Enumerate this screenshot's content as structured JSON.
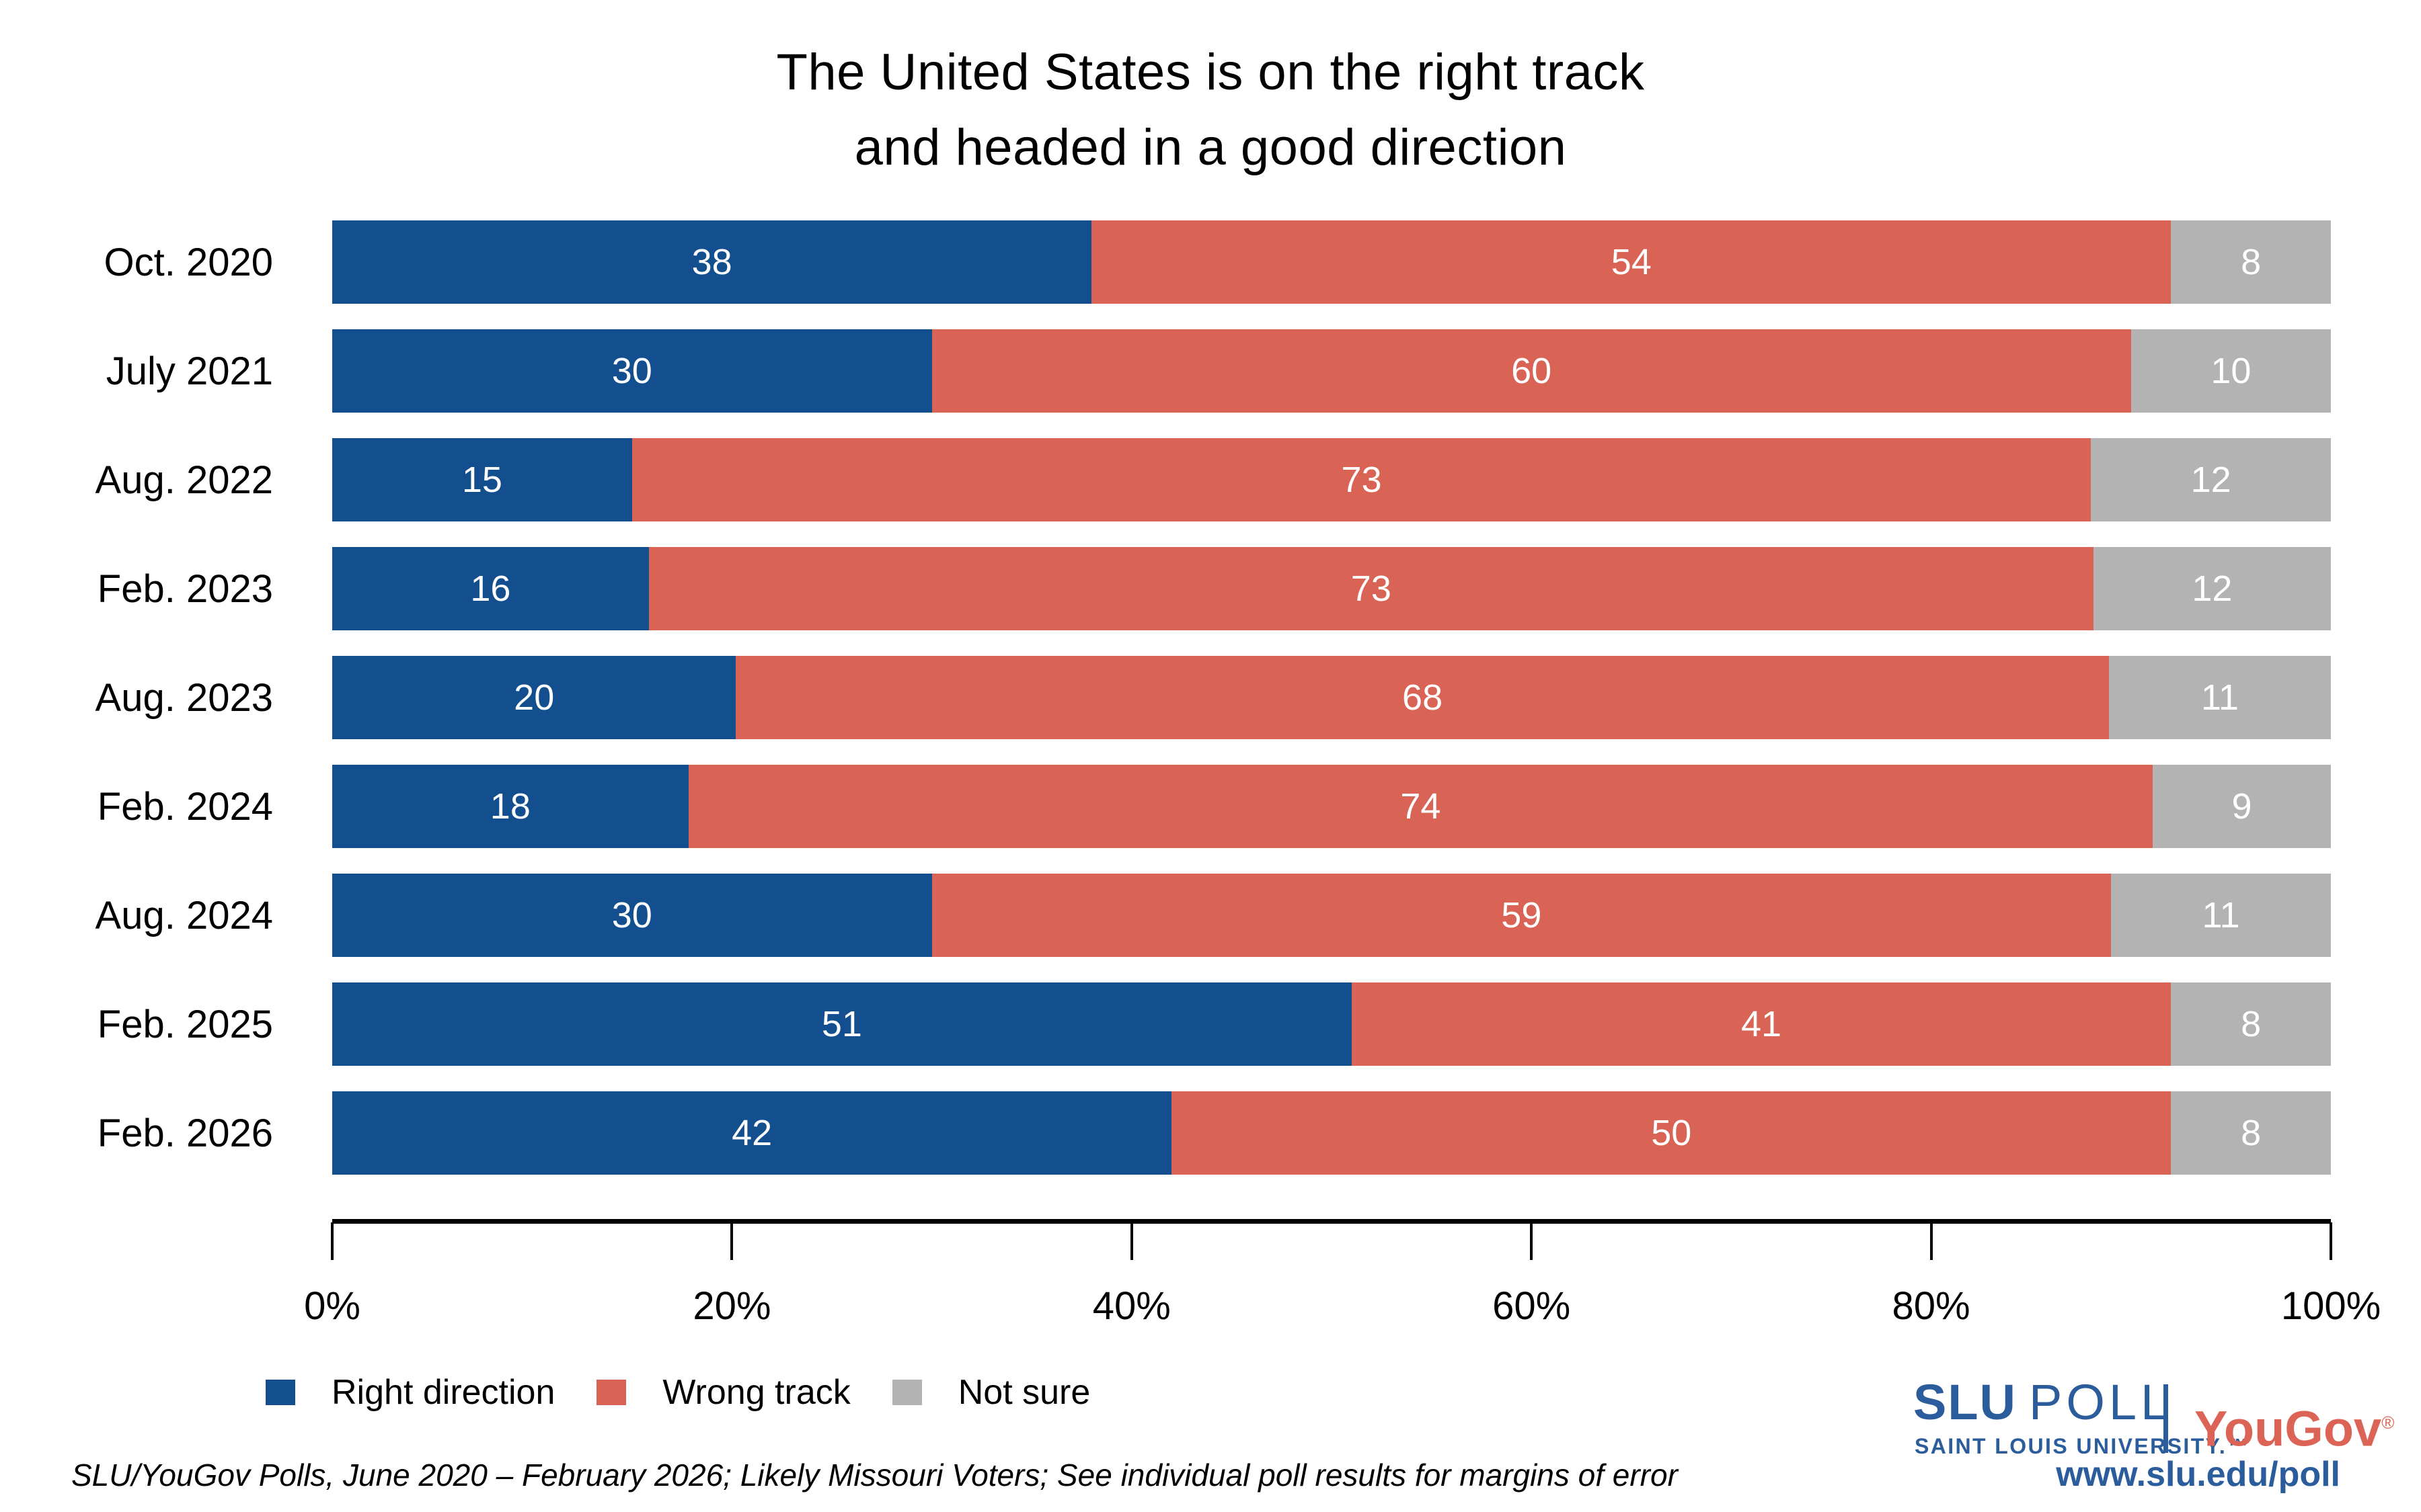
{
  "title": {
    "line1": "The United States is on the right track",
    "line2": "and headed in a good direction"
  },
  "chart_data": {
    "type": "bar",
    "orientation": "horizontal-stacked",
    "title": "The United States is on the right track and headed in a good direction",
    "categories": [
      "Oct. 2020",
      "July 2021",
      "Aug. 2022",
      "Feb. 2023",
      "Aug. 2023",
      "Feb. 2024",
      "Aug. 2024",
      "Feb. 2025",
      "Feb. 2026"
    ],
    "series": [
      {
        "name": "Right direction",
        "color": "#134E8E",
        "values": [
          38,
          30,
          15,
          16,
          20,
          18,
          30,
          51,
          42
        ]
      },
      {
        "name": "Wrong track",
        "color": "#D96355",
        "values": [
          54,
          60,
          73,
          73,
          68,
          74,
          59,
          41,
          50
        ]
      },
      {
        "name": "Not sure",
        "color": "#B3B3B4",
        "values": [
          8,
          10,
          12,
          12,
          11,
          9,
          11,
          8,
          8
        ]
      }
    ],
    "value_labels": "inside, white",
    "x_ticks": [
      "0%",
      "20%",
      "40%",
      "60%",
      "80%",
      "100%"
    ],
    "xlim": [
      0,
      100
    ],
    "grid": false,
    "legend_position": "bottom-left"
  },
  "footer": {
    "source": "SLU/YouGov Polls, June 2020 – February 2026; Likely Missouri Voters; See individual poll results for margins of error"
  },
  "branding": {
    "slu": "SLU",
    "poll": "POLL",
    "slu_sub": "SAINT LOUIS UNIVERSITY.™",
    "yougov": "YouGov",
    "registered": "®",
    "url": "www.slu.edu/poll",
    "slu_blue": "#2B5C9C",
    "yougov_red": "#DC6456",
    "bar_blue": "#134E8E",
    "bar_red": "#D96355",
    "bar_gray": "#B3B3B4"
  }
}
